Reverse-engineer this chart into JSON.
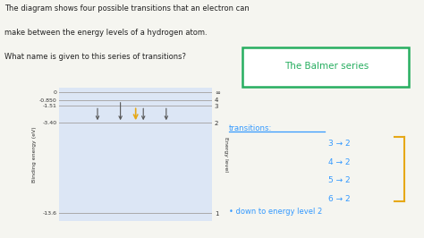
{
  "bg_color": "#f5f5f0",
  "plot_bg_color": "#dce6f5",
  "title_lines": [
    "The diagram shows four possible transitions that an electron can",
    "make between the energy levels of a hydrogen atom.",
    "What name is given to this series of transitions?"
  ],
  "title_color": "#222222",
  "energy_levels": [
    0,
    -0.85,
    -1.51,
    -3.4,
    -13.6
  ],
  "energy_labels_left": [
    "0",
    "-0.850",
    "-1.51",
    "-3.40",
    "-13.6"
  ],
  "energy_labels_right": [
    "∞",
    "4",
    "3",
    "2",
    "1"
  ],
  "ylim": [
    -14.5,
    0.5
  ],
  "xlim": [
    0,
    10
  ],
  "ylabel": "Binding energy (eV)",
  "ylabel2": "Energy level",
  "transition_colors": [
    "#555555",
    "#555555",
    "#555555",
    "#555555"
  ],
  "answer_box_text": "The Balmer series",
  "answer_box_color": "#27ae60",
  "answer_text_color": "#27ae60",
  "transitions_text": "transitions:",
  "transitions_color": "#3399ff",
  "transitions_lines": [
    "3 → 2",
    "4 → 2",
    "5 → 2",
    "6 → 2"
  ],
  "bracket_color": "#e6a817",
  "bullet_text": "• down to energy level 2",
  "bullet_color": "#3399ff",
  "arrow_color": "#e6a817"
}
